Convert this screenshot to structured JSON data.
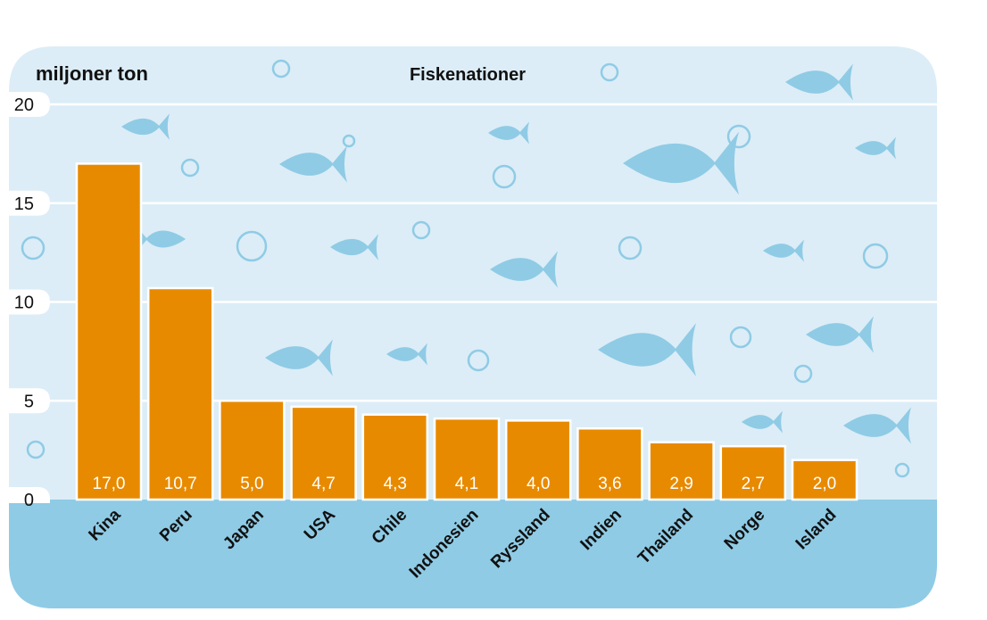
{
  "chart_data": {
    "type": "bar",
    "title": "Fiskenationer",
    "ylabel": "miljoner ton",
    "xlabel": "",
    "categories": [
      "Kina",
      "Peru",
      "Japan",
      "USA",
      "Chile",
      "Indonesien",
      "Ryssland",
      "Indien",
      "Thailand",
      "Norge",
      "Island"
    ],
    "values": [
      17.0,
      10.7,
      5.0,
      4.7,
      4.3,
      4.1,
      4.0,
      3.6,
      2.9,
      2.7,
      2.0
    ],
    "value_labels": [
      "17,0",
      "10,7",
      "5,0",
      "4,7",
      "4,3",
      "4,1",
      "4,0",
      "3,6",
      "2,9",
      "2,7",
      "2,0"
    ],
    "ylim": [
      0,
      20
    ],
    "yticks": [
      0,
      5,
      10,
      15,
      20
    ],
    "grid": true,
    "legend": "none"
  },
  "colors": {
    "background": "#dcedf7",
    "ground": "#8fcbe5",
    "bar": "#e88a00",
    "fish": "#8fcbe5",
    "grid": "#ffffff",
    "text": "#111111"
  },
  "decorations": {
    "fish_icon": "fish-icon",
    "bubble_icon": "bubble-icon"
  }
}
